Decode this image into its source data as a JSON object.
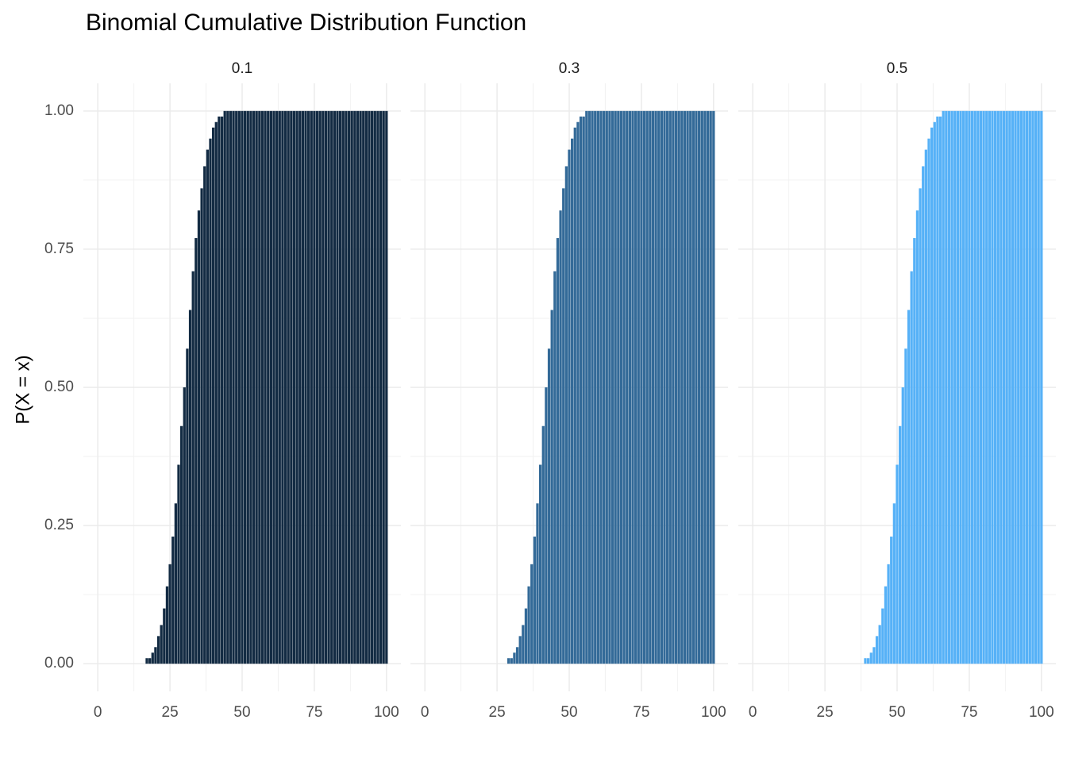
{
  "chart_data": {
    "type": "bar",
    "title": "Binomial Cumulative Distribution Function",
    "ylabel": "P(X = x)",
    "x": [
      0,
      1,
      2,
      3,
      4,
      5,
      6,
      7,
      8,
      9,
      10,
      11,
      12,
      13,
      14,
      15,
      16,
      17,
      18,
      19,
      20,
      21,
      22,
      23,
      24,
      25,
      26,
      27,
      28,
      29,
      30,
      31,
      32,
      33,
      34,
      35,
      36,
      37,
      38,
      39,
      40,
      41,
      42,
      43,
      44,
      45,
      46,
      47,
      48,
      49,
      50,
      51,
      52,
      53,
      54,
      55,
      56,
      57,
      58,
      59,
      60,
      61,
      62,
      63,
      64,
      65,
      66,
      67,
      68,
      69,
      70,
      71,
      72,
      73,
      74,
      75,
      76,
      77,
      78,
      79,
      80,
      81,
      82,
      83,
      84,
      85,
      86,
      87,
      88,
      89,
      90,
      91,
      92,
      93,
      94,
      95,
      96,
      97,
      98,
      99,
      100
    ],
    "xlim": [
      -5,
      105
    ],
    "xticks": [
      0,
      25,
      50,
      75,
      100
    ],
    "ylim": [
      -0.05,
      1.05
    ],
    "yticks": [
      {
        "value": 0,
        "label": "0.00"
      },
      {
        "value": 0.25,
        "label": "0.25"
      },
      {
        "value": 0.5,
        "label": "0.50"
      },
      {
        "value": 0.75,
        "label": "0.75"
      },
      {
        "value": 1,
        "label": "1.00"
      }
    ],
    "grid": true,
    "series": [
      {
        "name": "0.1",
        "color": "#132b43",
        "values": [
          0,
          0,
          0,
          0,
          0,
          0,
          0,
          0,
          0,
          0,
          0,
          0,
          0,
          0,
          0,
          0,
          0,
          0.01,
          0.01,
          0.02,
          0.03,
          0.05,
          0.07,
          0.1,
          0.14,
          0.18,
          0.23,
          0.29,
          0.36,
          0.43,
          0.5,
          0.57,
          0.64,
          0.71,
          0.77,
          0.82,
          0.86,
          0.9,
          0.93,
          0.95,
          0.97,
          0.98,
          0.99,
          0.99,
          1,
          1,
          1,
          1,
          1,
          1,
          1,
          1,
          1,
          1,
          1,
          1,
          1,
          1,
          1,
          1,
          1,
          1,
          1,
          1,
          1,
          1,
          1,
          1,
          1,
          1,
          1,
          1,
          1,
          1,
          1,
          1,
          1,
          1,
          1,
          1,
          1,
          1,
          1,
          1,
          1,
          1,
          1,
          1,
          1,
          1,
          1,
          1,
          1,
          1,
          1,
          1,
          1,
          1,
          1,
          1,
          1
        ]
      },
      {
        "name": "0.3",
        "color": "#336a98",
        "values": [
          0,
          0,
          0,
          0,
          0,
          0,
          0,
          0,
          0,
          0,
          0,
          0,
          0,
          0,
          0,
          0,
          0,
          0,
          0,
          0,
          0,
          0,
          0,
          0,
          0,
          0,
          0,
          0,
          0,
          0.01,
          0.01,
          0.02,
          0.03,
          0.05,
          0.07,
          0.1,
          0.14,
          0.18,
          0.23,
          0.29,
          0.36,
          0.43,
          0.5,
          0.57,
          0.64,
          0.71,
          0.77,
          0.82,
          0.86,
          0.9,
          0.93,
          0.95,
          0.97,
          0.98,
          0.99,
          0.99,
          1,
          1,
          1,
          1,
          1,
          1,
          1,
          1,
          1,
          1,
          1,
          1,
          1,
          1,
          1,
          1,
          1,
          1,
          1,
          1,
          1,
          1,
          1,
          1,
          1,
          1,
          1,
          1,
          1,
          1,
          1,
          1,
          1,
          1,
          1,
          1,
          1,
          1,
          1,
          1,
          1,
          1,
          1,
          1,
          1
        ]
      },
      {
        "name": "0.5",
        "color": "#56b1f7",
        "values": [
          0,
          0,
          0,
          0,
          0,
          0,
          0,
          0,
          0,
          0,
          0,
          0,
          0,
          0,
          0,
          0,
          0,
          0,
          0,
          0,
          0,
          0,
          0,
          0,
          0,
          0,
          0,
          0,
          0,
          0,
          0,
          0,
          0,
          0,
          0,
          0,
          0,
          0,
          0,
          0.01,
          0.01,
          0.02,
          0.03,
          0.05,
          0.07,
          0.1,
          0.14,
          0.18,
          0.23,
          0.29,
          0.36,
          0.43,
          0.5,
          0.57,
          0.64,
          0.71,
          0.77,
          0.82,
          0.86,
          0.9,
          0.93,
          0.95,
          0.97,
          0.98,
          0.99,
          0.99,
          1,
          1,
          1,
          1,
          1,
          1,
          1,
          1,
          1,
          1,
          1,
          1,
          1,
          1,
          1,
          1,
          1,
          1,
          1,
          1,
          1,
          1,
          1,
          1,
          1,
          1,
          1,
          1,
          1,
          1,
          1,
          1,
          1,
          1,
          1
        ]
      }
    ]
  }
}
